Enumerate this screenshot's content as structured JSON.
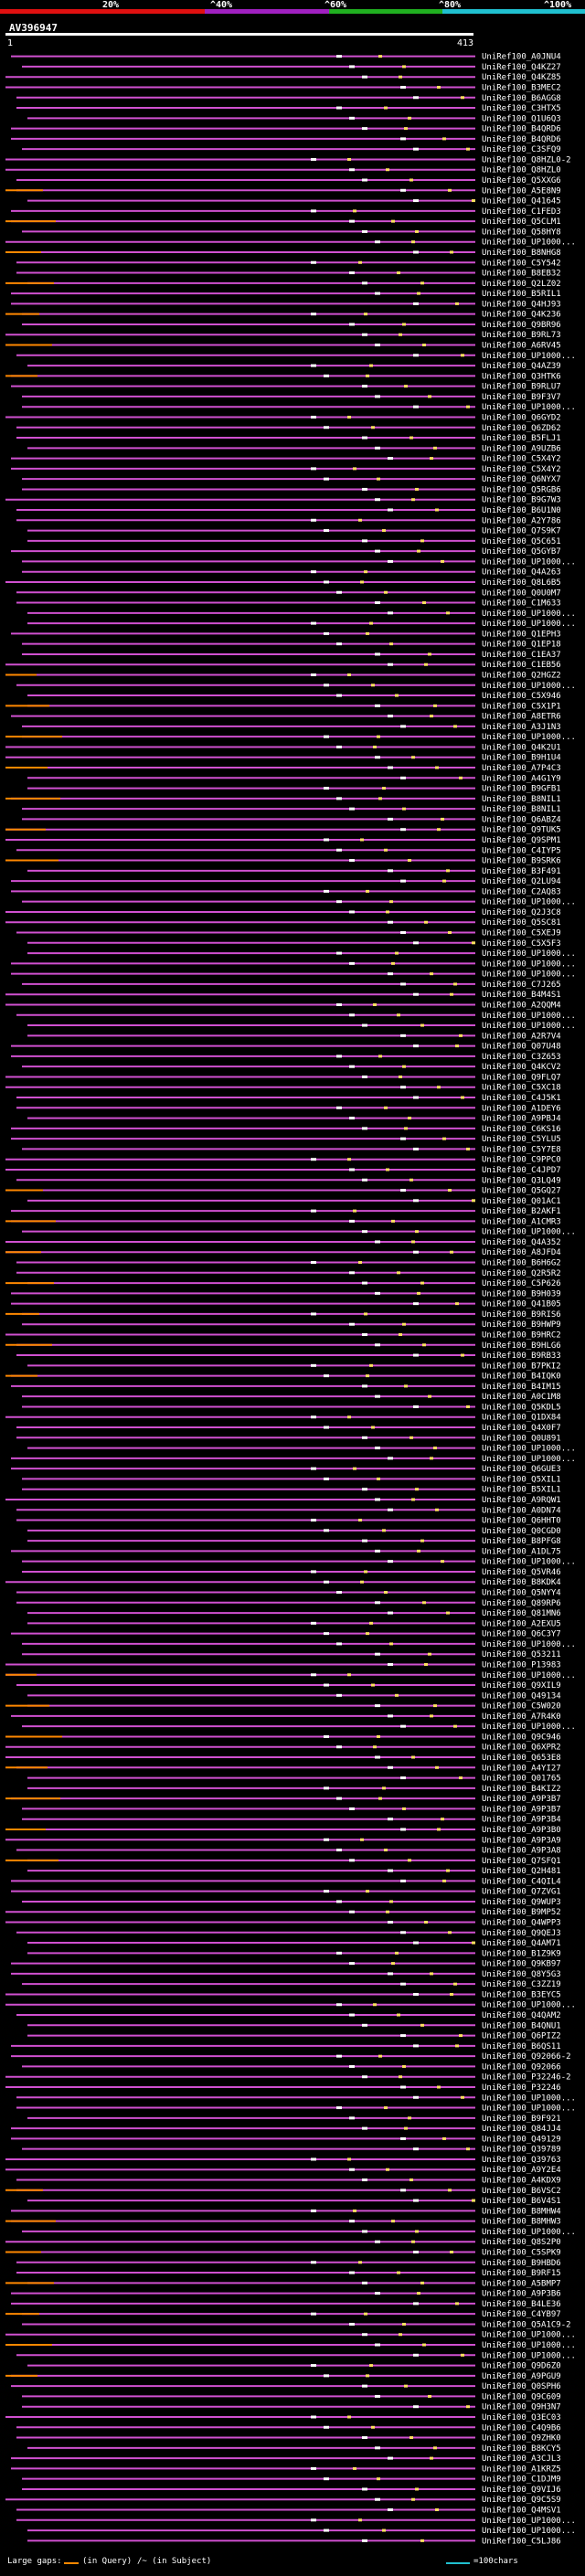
{
  "scale": {
    "ticks": [
      "20%",
      "^40%",
      "^60%",
      "^80%",
      "^100%"
    ],
    "colors": [
      "#e01010",
      "#e01010",
      "#a020c0",
      "#20b020",
      "#20c0d0"
    ]
  },
  "query": {
    "name": "AV396947",
    "start": "1",
    "end": "413"
  },
  "hits": [
    "UniRef100_A0JNU4",
    "UniRef100_Q4KZ27",
    "UniRef100_Q4KZ85",
    "UniRef100_B3MEC2",
    "UniRef100_B6AGG8",
    "UniRef100_C3HTX5",
    "UniRef100_Q1U6Q3",
    "UniRef100_B4QRD6",
    "UniRef100_B4QRD6",
    "UniRef100_C3SFQ9",
    "UniRef100_Q8HZL0-2",
    "UniRef100_Q8HZL0",
    "UniRef100_Q5XXG6",
    "UniRef100_A5E8N9",
    "UniRef100_Q41645",
    "UniRef100_C1FED3",
    "UniRef100_Q5CLM1",
    "UniRef100_Q58HY8",
    "UniRef100_UP1000...",
    "UniRef100_B8NHG8",
    "UniRef100_C5Y542",
    "UniRef100_B8EB32",
    "UniRef100_Q2LZ02",
    "UniRef100_B5RIL1",
    "UniRef100_Q4HJ93",
    "UniRef100_Q4K236",
    "UniRef100_Q9BR96",
    "UniRef100_B9RL73",
    "UniRef100_A6RV45",
    "UniRef100_UP1000...",
    "UniRef100_Q4AZ39",
    "UniRef100_Q3HTK6",
    "UniRef100_B9RLU7",
    "UniRef100_B9F3V7",
    "UniRef100_UP1000...",
    "UniRef100_Q6GYD2",
    "UniRef100_Q6ZD62",
    "UniRef100_B5FLJ1",
    "UniRef100_A9UZB6",
    "UniRef100_C5X4Y2",
    "UniRef100_C5X4Y2",
    "UniRef100_Q6NYX7",
    "UniRef100_Q5RGB6",
    "UniRef100_B9G7W3",
    "UniRef100_B6U1N0",
    "UniRef100_A2Y786",
    "UniRef100_Q7S9K7",
    "UniRef100_Q5C651",
    "UniRef100_Q5GYB7",
    "UniRef100_UP1000...",
    "UniRef100_Q4A263",
    "UniRef100_Q8L6B5",
    "UniRef100_Q0U0M7",
    "UniRef100_C1M633",
    "UniRef100_UP1000...",
    "UniRef100_UP1000...",
    "UniRef100_Q1EPH3",
    "UniRef100_Q1EP18",
    "UniRef100_C1EA37",
    "UniRef100_C1EB56",
    "UniRef100_Q2HGZ2",
    "UniRef100_UP1000...",
    "UniRef100_C5X946",
    "UniRef100_C5X1P1",
    "UniRef100_A8ETR6",
    "UniRef100_A3J1N3",
    "UniRef100_UP1000...",
    "UniRef100_Q4K2U1",
    "UniRef100_B9H1U4",
    "UniRef100_A7P4C3",
    "UniRef100_A4G1Y9",
    "UniRef100_B9GFB1",
    "UniRef100_B8NIL1",
    "UniRef100_B8NIL1",
    "UniRef100_Q6ABZ4",
    "UniRef100_Q9TUK5",
    "UniRef100_Q9SPM1",
    "UniRef100_C4IYP5",
    "UniRef100_B9SRK6",
    "UniRef100_B3F491",
    "UniRef100_Q2LU94",
    "UniRef100_C2AQ83",
    "UniRef100_UP1000...",
    "UniRef100_Q2J3C8",
    "UniRef100_Q5SC81",
    "UniRef100_C5XEJ9",
    "UniRef100_C5X5F3",
    "UniRef100_UP1000...",
    "UniRef100_UP1000...",
    "UniRef100_UP1000...",
    "UniRef100_C7J265",
    "UniRef100_B4M4S1",
    "UniRef100_A2QQM4",
    "UniRef100_UP1000...",
    "UniRef100_UP1000...",
    "UniRef100_A2R7V4",
    "UniRef100_Q07U48",
    "UniRef100_C3Z653",
    "UniRef100_Q4KCV2",
    "UniRef100_Q9FLQ7",
    "UniRef100_C5XC18",
    "UniRef100_C4J5K1",
    "UniRef100_A1DEY6",
    "UniRef100_A9PBJ4",
    "UniRef100_C6KS16",
    "UniRef100_C5YLU5",
    "UniRef100_C5Y7E8",
    "UniRef100_C9PPC0",
    "UniRef100_C4JPD7",
    "UniRef100_Q3LQ49",
    "UniRef100_Q5GQ27",
    "UniRef100_Q01AC1",
    "UniRef100_B2AKF1",
    "UniRef100_A1CMR3",
    "UniRef100_UP1000...",
    "UniRef100_Q4A352",
    "UniRef100_A8JFD4",
    "UniRef100_B6H6G2",
    "UniRef100_Q2R5R2",
    "UniRef100_C5P626",
    "UniRef100_B9H039",
    "UniRef100_Q41B05",
    "UniRef100_B9RIS6",
    "UniRef100_B9HWP9",
    "UniRef100_B9HRC2",
    "UniRef100_B9HLG6",
    "UniRef100_B9RB33",
    "UniRef100_B7PKI2",
    "UniRef100_B4IQK0",
    "UniRef100_B4IM15",
    "UniRef100_A0C1M8",
    "UniRef100_Q5KDL5",
    "UniRef100_Q1DX84",
    "UniRef100_Q4X0F7",
    "UniRef100_Q0U891",
    "UniRef100_UP1000...",
    "UniRef100_UP1000...",
    "UniRef100_Q6GUE3",
    "UniRef100_Q5XIL1",
    "UniRef100_B5XIL1",
    "UniRef100_A9RQW1",
    "UniRef100_A0DN74",
    "UniRef100_Q6HHT0",
    "UniRef100_Q0CGD0",
    "UniRef100_B8PFG8",
    "UniRef100_A1DL75",
    "UniRef100_UP1000...",
    "UniRef100_Q5VR46",
    "UniRef100_B8KDK4",
    "UniRef100_Q5NYY4",
    "UniRef100_Q89RP6",
    "UniRef100_Q81MN6",
    "UniRef100_A2EXU5",
    "UniRef100_Q6C3Y7",
    "UniRef100_UP1000...",
    "UniRef100_Q53211",
    "UniRef100_P13983",
    "UniRef100_UP1000...",
    "UniRef100_Q9XIL9",
    "UniRef100_Q49134",
    "UniRef100_C5W020",
    "UniRef100_A7R4K0",
    "UniRef100_UP1000...",
    "UniRef100_Q9C946",
    "UniRef100_Q6XPR2",
    "UniRef100_Q653E8",
    "UniRef100_A4YI27",
    "UniRef100_Q01765",
    "UniRef100_B4KIZ2",
    "UniRef100_A9P3B7",
    "UniRef100_A9P3B7",
    "UniRef100_A9P3B4",
    "UniRef100_A9P3B0",
    "UniRef100_A9P3A9",
    "UniRef100_A9P3A8",
    "UniRef100_Q7SFQ1",
    "UniRef100_Q2H481",
    "UniRef100_C4QIL4",
    "UniRef100_Q7ZVG1",
    "UniRef100_Q9WUP3",
    "UniRef100_B9MP52",
    "UniRef100_Q4WPP3",
    "UniRef100_Q9QEJ3",
    "UniRef100_Q4AM71",
    "UniRef100_B1Z9K9",
    "UniRef100_Q9KB97",
    "UniRef100_Q8Y5G3",
    "UniRef100_C3ZZ19",
    "UniRef100_B3EYC5",
    "UniRef100_UP1000...",
    "UniRef100_Q4QAM2",
    "UniRef100_B4QNU1",
    "UniRef100_Q6PIZ2",
    "UniRef100_B6QS11",
    "UniRef100_Q92066-2",
    "UniRef100_Q92066",
    "UniRef100_P32246-2",
    "UniRef100_P32246",
    "UniRef100_UP1000...",
    "UniRef100_UP1000...",
    "UniRef100_B9F921",
    "UniRef100_Q84JJ4",
    "UniRef100_Q49129",
    "UniRef100_Q39789",
    "UniRef100_Q39763",
    "UniRef100_A9Y2E4",
    "UniRef100_A4KDX9",
    "UniRef100_B6VSC2",
    "UniRef100_B6V4S1",
    "UniRef100_B8MHW4",
    "UniRef100_B8MHW3",
    "UniRef100_UP1000...",
    "UniRef100_Q8S2P0",
    "UniRef100_C5SPK9",
    "UniRef100_B9HBD6",
    "UniRef100_B9RF15",
    "UniRef100_A5BMP7",
    "UniRef100_A9P3B6",
    "UniRef100_B4LE36",
    "UniRef100_C4YB97",
    "UniRef100_Q5A1C9-2",
    "UniRef100_UP1000...",
    "UniRef100_UP1000...",
    "UniRef100_UP1000...",
    "UniRef100_Q9D6Z0",
    "UniRef100_A9PGU9",
    "UniRef100_Q0SPH6",
    "UniRef100_Q9C609",
    "UniRef100_Q9H3N7",
    "UniRef100_Q3EC03",
    "UniRef100_C4Q9B6",
    "UniRef100_Q9ZHK0",
    "UniRef100_B8KCY5",
    "UniRef100_A3CJL3",
    "UniRef100_A1KRZ5",
    "UniRef100_C1DJM9",
    "UniRef100_Q9VIJ6",
    "UniRef100_Q9C5S9",
    "UniRef100_Q4MSV1",
    "UniRef100_UP1000...",
    "UniRef100_UP1000...",
    "UniRef100_C5LJ86"
  ],
  "legend": {
    "large_gaps_label": "Large gaps:",
    "in_query_text": "(in Query)",
    "in_subject_text": "/~ (in Subject)",
    "scale_text": "=100chars",
    "query_gap_color": "#ff8800",
    "subject_gap_color": "#d050d0",
    "scale_color": "#20c0d0"
  }
}
